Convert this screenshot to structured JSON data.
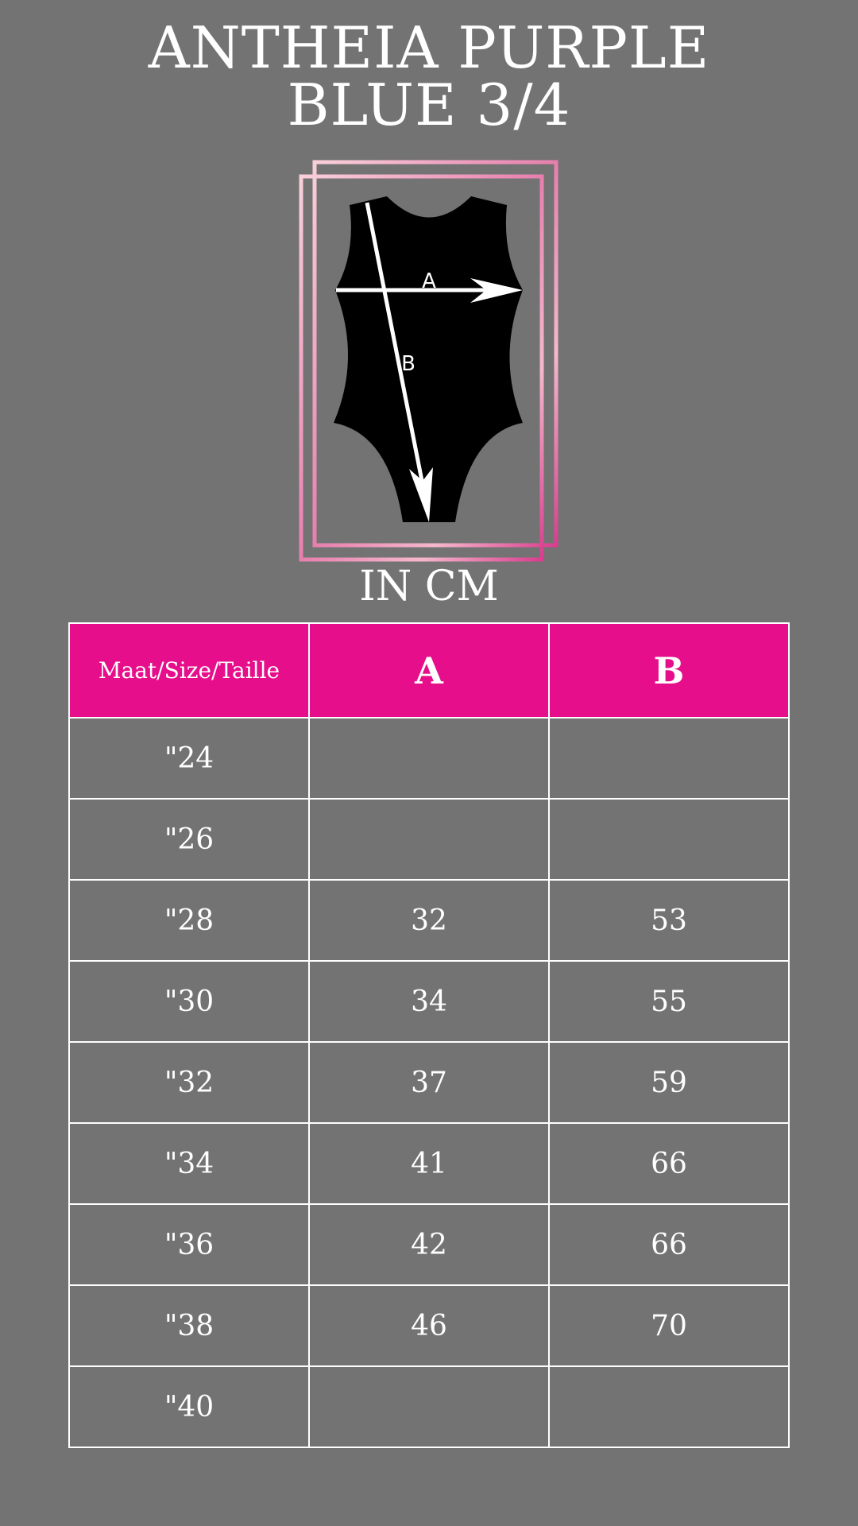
{
  "title": {
    "line1": "ANTHEIA PURPLE",
    "line2": "BLUE 3/4"
  },
  "diagram": {
    "label_a": "A",
    "label_b": "B",
    "frame_colors": [
      "#f7c6d3",
      "#e0509a"
    ]
  },
  "unit": "IN CM",
  "table": {
    "headers": [
      "Maat/Size/Taille",
      "A",
      "B"
    ],
    "rows": [
      [
        "\"24",
        "",
        ""
      ],
      [
        "\"26",
        "",
        ""
      ],
      [
        "\"28",
        "32",
        "53"
      ],
      [
        "\"30",
        "34",
        "55"
      ],
      [
        "\"32",
        "37",
        "59"
      ],
      [
        "\"34",
        "41",
        "66"
      ],
      [
        "\"36",
        "42",
        "66"
      ],
      [
        "\"38",
        "46",
        "70"
      ],
      [
        "\"40",
        "",
        ""
      ]
    ]
  },
  "colors": {
    "background": "#737373",
    "header": "#e60e8a"
  }
}
